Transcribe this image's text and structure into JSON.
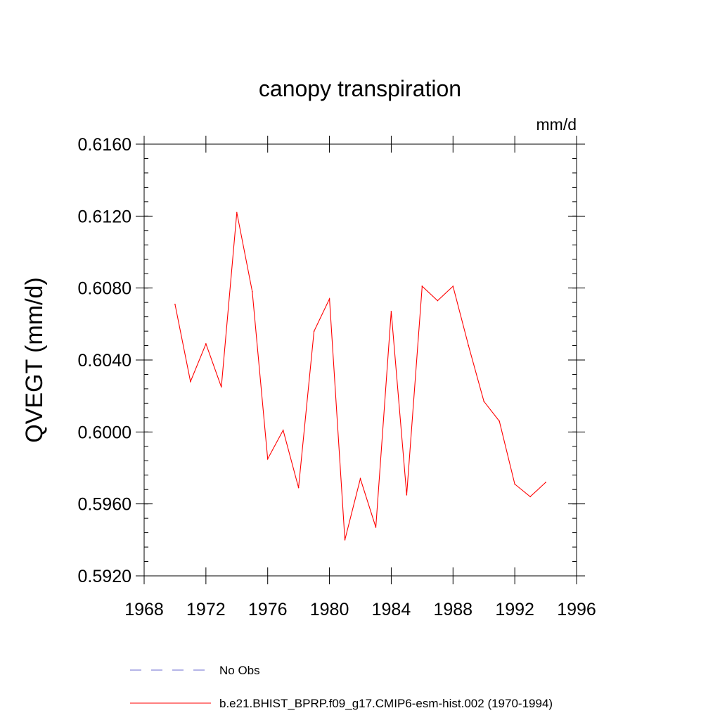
{
  "chart_data": {
    "type": "line",
    "title": "canopy transpiration",
    "units_label": "mm/d",
    "xlabel": "",
    "ylabel": "QVEGT  (mm/d)",
    "xlim": [
      1968,
      1996
    ],
    "ylim": [
      0.592,
      0.616
    ],
    "xticks": [
      1968,
      1972,
      1976,
      1980,
      1984,
      1988,
      1992,
      1996
    ],
    "xtick_labels": [
      "1968",
      "1972",
      "1976",
      "1980",
      "1984",
      "1988",
      "1992",
      "1996"
    ],
    "yticks": [
      0.592,
      0.596,
      0.6,
      0.604,
      0.608,
      0.612,
      0.616
    ],
    "ytick_labels": [
      "0.5920",
      "0.5960",
      "0.6000",
      "0.6040",
      "0.6080",
      "0.6120",
      "0.6160"
    ],
    "grid": false,
    "legend_position": "bottom",
    "series": [
      {
        "name": "b.e21.BHIST_BPRP.f09_g17.CMIP6-esm-hist.002 (1970-1994)",
        "color": "#ff0000",
        "style": "solid",
        "x": [
          1970,
          1971,
          1972,
          1973,
          1974,
          1975,
          1976,
          1977,
          1978,
          1979,
          1980,
          1981,
          1982,
          1983,
          1984,
          1985,
          1986,
          1987,
          1988,
          1989,
          1990,
          1991,
          1992,
          1993,
          1994
        ],
        "y": [
          0.6071,
          0.6028,
          0.6049,
          0.6025,
          0.6122,
          0.6078,
          0.5985,
          0.6001,
          0.5969,
          0.6056,
          0.6074,
          0.594,
          0.5974,
          0.5947,
          0.6067,
          0.5965,
          0.6081,
          0.6073,
          0.6081,
          0.6048,
          0.6017,
          0.6006,
          0.5971,
          0.5964,
          0.5972
        ]
      }
    ],
    "legend": [
      {
        "label": "No Obs",
        "color": "#6b6bd0",
        "style": "dashed"
      },
      {
        "label": "b.e21.BHIST_BPRP.f09_g17.CMIP6-esm-hist.002 (1970-1994)",
        "color": "#ff0000",
        "style": "solid"
      }
    ]
  }
}
